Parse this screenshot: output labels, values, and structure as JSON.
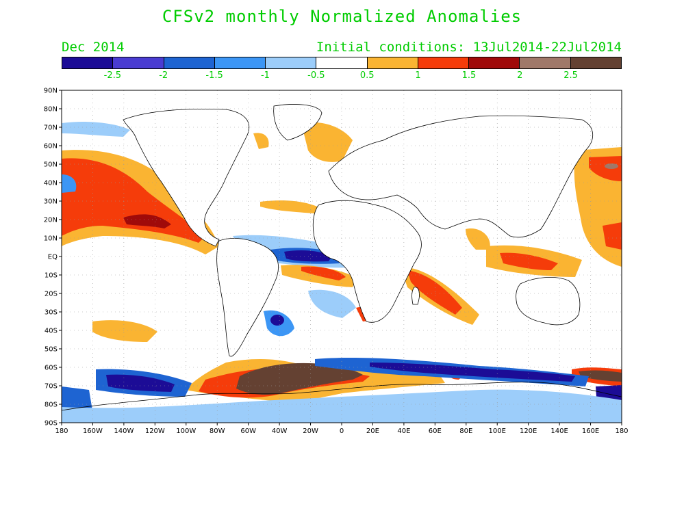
{
  "title": "CFSv2 monthly Normalized Anomalies",
  "month_label": "Dec 2014",
  "initial_conditions": "Initial conditions: 13Jul2014-22Jul2014",
  "colorbar": {
    "colors": [
      "#1c0c96",
      "#4a3cd2",
      "#1e64d2",
      "#3c96f5",
      "#9ccdfa",
      "#ffffff",
      "#fab432",
      "#f53c0a",
      "#a00a0a",
      "#a07869",
      "#644132"
    ],
    "labels": [
      "-2.5",
      "-2",
      "-1.5",
      "-1",
      "-0.5",
      "0.5",
      "1",
      "1.5",
      "2",
      "2.5"
    ]
  },
  "map": {
    "lat_labels": [
      "90N",
      "80N",
      "70N",
      "60N",
      "50N",
      "40N",
      "30N",
      "20N",
      "10N",
      "EQ",
      "10S",
      "20S",
      "30S",
      "40S",
      "50S",
      "60S",
      "70S",
      "80S",
      "90S"
    ],
    "lon_labels": [
      "180",
      "160W",
      "140W",
      "120W",
      "100W",
      "80W",
      "60W",
      "40W",
      "20W",
      "0",
      "20E",
      "40E",
      "60E",
      "80E",
      "100E",
      "120E",
      "140E",
      "160E",
      "180"
    ]
  }
}
